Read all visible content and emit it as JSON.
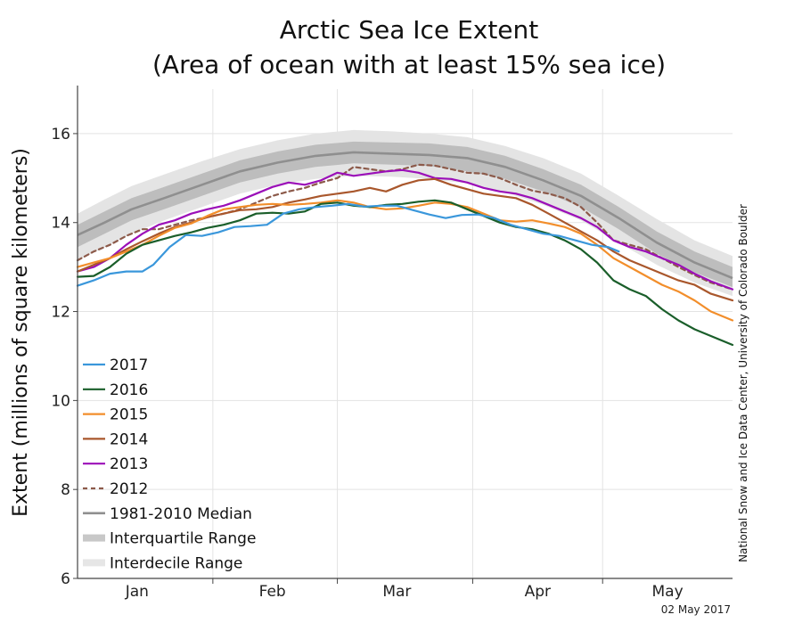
{
  "chart_data": {
    "type": "line",
    "title_line1": "Arctic Sea Ice Extent",
    "title_line2": "(Area of ocean with at least 15% sea ice)",
    "ylabel": "Extent (millions of square kilometers)",
    "xlabel": "",
    "ylim": [
      6,
      17
    ],
    "xlim": [
      1,
      122
    ],
    "y_ticks": [
      6,
      8,
      10,
      12,
      14,
      16
    ],
    "x_month_labels": [
      {
        "label": "Jan",
        "day": 12
      },
      {
        "label": "Feb",
        "day": 37
      },
      {
        "label": "Mar",
        "day": 60
      },
      {
        "label": "Apr",
        "day": 86
      },
      {
        "label": "May",
        "day": 110
      }
    ],
    "x_month_boundaries": [
      26,
      49,
      74,
      98
    ],
    "date_stamp": "02 May 2017",
    "credit": "National Snow and Ice Data Center, University of Colorado Boulder",
    "grid": true,
    "legend_position": "bottom-left",
    "bands": {
      "median": {
        "name": "1981-2010 Median",
        "color": "#8f8f8f",
        "x": [
          1,
          6,
          11,
          17,
          24,
          31,
          38,
          45,
          52,
          59,
          66,
          73,
          80,
          87,
          94,
          101,
          108,
          115,
          122
        ],
        "values": [
          13.72,
          14.0,
          14.3,
          14.55,
          14.85,
          15.15,
          15.35,
          15.5,
          15.58,
          15.55,
          15.52,
          15.45,
          15.25,
          14.95,
          14.6,
          14.1,
          13.55,
          13.1,
          12.75
        ]
      },
      "interquartile": {
        "name": "Interquartile Range",
        "color": "#bdbdbd",
        "x": [
          1,
          6,
          11,
          17,
          24,
          31,
          38,
          45,
          52,
          59,
          66,
          73,
          80,
          87,
          94,
          101,
          108,
          115,
          122
        ],
        "lower": [
          13.45,
          13.75,
          14.05,
          14.3,
          14.6,
          14.9,
          15.1,
          15.25,
          15.33,
          15.3,
          15.27,
          15.15,
          14.98,
          14.7,
          14.35,
          13.85,
          13.3,
          12.88,
          12.55
        ],
        "upper": [
          13.95,
          14.25,
          14.55,
          14.8,
          15.1,
          15.4,
          15.6,
          15.75,
          15.82,
          15.8,
          15.78,
          15.7,
          15.5,
          15.2,
          14.85,
          14.35,
          13.8,
          13.35,
          13.0
        ]
      },
      "interdecile": {
        "name": "Interdecile Range",
        "color": "#e4e4e4",
        "x": [
          1,
          6,
          11,
          17,
          24,
          31,
          38,
          45,
          52,
          59,
          66,
          73,
          80,
          87,
          94,
          101,
          108,
          115,
          122
        ],
        "lower": [
          13.15,
          13.45,
          13.75,
          14.05,
          14.35,
          14.65,
          14.85,
          14.98,
          15.05,
          15.03,
          14.98,
          14.88,
          14.68,
          14.4,
          14.05,
          13.55,
          13.05,
          12.65,
          12.35
        ],
        "upper": [
          14.2,
          14.52,
          14.82,
          15.08,
          15.38,
          15.65,
          15.85,
          16.0,
          16.08,
          16.05,
          16.0,
          15.92,
          15.72,
          15.45,
          15.1,
          14.6,
          14.08,
          13.6,
          13.25
        ]
      }
    },
    "series": [
      {
        "name": "2017",
        "color": "#3a97db",
        "dash": false,
        "x": [
          1,
          4,
          7,
          10,
          13,
          15,
          18,
          21,
          24,
          27,
          30,
          33,
          36,
          39,
          42,
          45,
          48,
          51,
          54,
          57,
          60,
          63,
          66,
          69,
          72,
          75,
          78,
          81,
          84,
          87,
          90,
          93,
          96,
          99,
          101
        ],
        "values": [
          12.58,
          12.7,
          12.85,
          12.9,
          12.9,
          13.05,
          13.45,
          13.72,
          13.7,
          13.78,
          13.9,
          13.92,
          13.95,
          14.2,
          14.3,
          14.35,
          14.38,
          14.42,
          14.36,
          14.38,
          14.38,
          14.28,
          14.18,
          14.1,
          14.17,
          14.18,
          14.1,
          13.95,
          13.85,
          13.75,
          13.7,
          13.6,
          13.5,
          13.45,
          13.35
        ]
      },
      {
        "name": "2016",
        "color": "#1a5e2a",
        "dash": false,
        "x": [
          1,
          4,
          7,
          10,
          13,
          16,
          19,
          22,
          25,
          28,
          31,
          34,
          37,
          40,
          43,
          46,
          49,
          52,
          55,
          58,
          61,
          64,
          67,
          70,
          73,
          76,
          79,
          82,
          85,
          88,
          91,
          94,
          97,
          100,
          103,
          106,
          109,
          112,
          115,
          118,
          122
        ],
        "values": [
          12.78,
          12.8,
          13.0,
          13.3,
          13.5,
          13.6,
          13.7,
          13.78,
          13.88,
          13.95,
          14.05,
          14.2,
          14.22,
          14.2,
          14.25,
          14.42,
          14.45,
          14.38,
          14.35,
          14.4,
          14.42,
          14.47,
          14.5,
          14.45,
          14.3,
          14.15,
          14.0,
          13.9,
          13.85,
          13.75,
          13.6,
          13.4,
          13.1,
          12.7,
          12.5,
          12.35,
          12.05,
          11.8,
          11.6,
          11.45,
          11.25
        ]
      },
      {
        "name": "2015",
        "color": "#f28e2b",
        "dash": false,
        "x": [
          1,
          4,
          7,
          10,
          13,
          16,
          19,
          22,
          25,
          28,
          31,
          34,
          37,
          40,
          43,
          46,
          49,
          52,
          55,
          58,
          61,
          64,
          67,
          70,
          73,
          76,
          79,
          82,
          85,
          88,
          91,
          94,
          97,
          100,
          103,
          106,
          109,
          112,
          115,
          118,
          122
        ],
        "values": [
          13.0,
          13.1,
          13.2,
          13.35,
          13.5,
          13.7,
          13.88,
          13.98,
          14.15,
          14.3,
          14.35,
          14.4,
          14.42,
          14.4,
          14.42,
          14.45,
          14.5,
          14.45,
          14.35,
          14.3,
          14.32,
          14.38,
          14.45,
          14.42,
          14.35,
          14.2,
          14.05,
          14.02,
          14.05,
          13.98,
          13.9,
          13.75,
          13.5,
          13.2,
          13.0,
          12.8,
          12.6,
          12.45,
          12.25,
          12.0,
          11.8
        ]
      },
      {
        "name": "2014",
        "color": "#a9572c",
        "dash": false,
        "x": [
          1,
          4,
          7,
          10,
          13,
          16,
          19,
          22,
          25,
          28,
          31,
          34,
          37,
          40,
          43,
          46,
          49,
          52,
          55,
          58,
          61,
          64,
          67,
          70,
          73,
          76,
          79,
          82,
          85,
          88,
          91,
          94,
          97,
          100,
          103,
          106,
          109,
          112,
          115,
          118,
          122
        ],
        "values": [
          12.9,
          13.05,
          13.2,
          13.4,
          13.58,
          13.75,
          13.9,
          14.0,
          14.12,
          14.2,
          14.28,
          14.3,
          14.35,
          14.45,
          14.52,
          14.6,
          14.65,
          14.7,
          14.78,
          14.7,
          14.85,
          14.95,
          14.98,
          14.85,
          14.75,
          14.65,
          14.6,
          14.55,
          14.4,
          14.2,
          14.0,
          13.8,
          13.6,
          13.35,
          13.15,
          13.0,
          12.85,
          12.7,
          12.6,
          12.4,
          12.25
        ]
      },
      {
        "name": "2013",
        "color": "#9b0fb8",
        "dash": false,
        "x": [
          1,
          4,
          7,
          10,
          13,
          16,
          19,
          22,
          25,
          28,
          31,
          34,
          37,
          40,
          43,
          46,
          49,
          52,
          55,
          58,
          61,
          64,
          67,
          70,
          73,
          76,
          79,
          82,
          85,
          88,
          91,
          94,
          97,
          100,
          103,
          106,
          109,
          112,
          115,
          118,
          122
        ],
        "values": [
          12.9,
          13.0,
          13.2,
          13.5,
          13.75,
          13.95,
          14.05,
          14.2,
          14.3,
          14.38,
          14.5,
          14.65,
          14.8,
          14.9,
          14.85,
          14.95,
          15.12,
          15.05,
          15.1,
          15.15,
          15.18,
          15.12,
          15.0,
          14.98,
          14.9,
          14.78,
          14.7,
          14.65,
          14.55,
          14.4,
          14.25,
          14.1,
          13.9,
          13.6,
          13.45,
          13.35,
          13.2,
          13.05,
          12.85,
          12.68,
          12.5
        ]
      },
      {
        "name": "2012",
        "color": "#8c5a4a",
        "dash": true,
        "x": [
          1,
          4,
          7,
          10,
          13,
          16,
          19,
          22,
          25,
          28,
          31,
          34,
          37,
          40,
          43,
          46,
          49,
          52,
          55,
          58,
          61,
          64,
          67,
          70,
          73,
          76,
          79,
          82,
          85,
          88,
          91,
          94,
          97,
          100,
          103,
          106,
          109,
          112,
          115,
          118,
          122
        ],
        "values": [
          13.15,
          13.35,
          13.5,
          13.7,
          13.85,
          13.85,
          13.95,
          14.05,
          14.12,
          14.2,
          14.3,
          14.45,
          14.6,
          14.7,
          14.78,
          14.9,
          15.0,
          15.25,
          15.2,
          15.15,
          15.2,
          15.3,
          15.28,
          15.2,
          15.12,
          15.1,
          15.0,
          14.85,
          14.72,
          14.65,
          14.55,
          14.35,
          14.0,
          13.6,
          13.5,
          13.4,
          13.2,
          13.0,
          12.82,
          12.65,
          12.5
        ]
      }
    ],
    "legend": [
      {
        "name": "2017",
        "color": "#3a97db",
        "style": "line"
      },
      {
        "name": "2016",
        "color": "#1a5e2a",
        "style": "line"
      },
      {
        "name": "2015",
        "color": "#f28e2b",
        "style": "line"
      },
      {
        "name": "2014",
        "color": "#a9572c",
        "style": "line"
      },
      {
        "name": "2013",
        "color": "#9b0fb8",
        "style": "line"
      },
      {
        "name": "2012",
        "color": "#8c5a4a",
        "style": "dash"
      },
      {
        "name": "1981-2010 Median",
        "color": "#8f8f8f",
        "style": "line"
      },
      {
        "name": "Interquartile Range",
        "color": "#c8c8c8",
        "style": "band"
      },
      {
        "name": "Interdecile Range",
        "color": "#e6e6e6",
        "style": "band"
      }
    ]
  }
}
